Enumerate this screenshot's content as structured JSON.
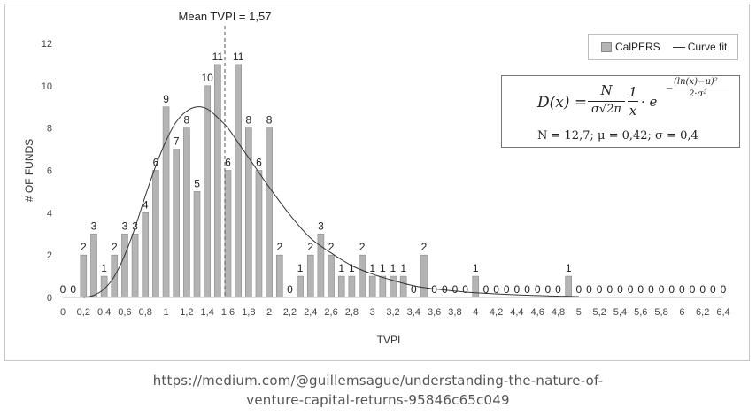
{
  "chart_data": {
    "type": "bar",
    "xlabel": "TVPI",
    "ylabel": "# OF FUNDS",
    "ylim": [
      0,
      12
    ],
    "xlim": [
      0,
      6.4
    ],
    "y_ticks": [
      "0",
      "2",
      "4",
      "6",
      "8",
      "10",
      "12"
    ],
    "x_tick_labels": [
      "0",
      "0,2",
      "0,4",
      "0,6",
      "0,8",
      "1",
      "1,2",
      "1,4",
      "1,6",
      "1,8",
      "2",
      "2,2",
      "2,4",
      "2,6",
      "2,8",
      "3",
      "3,2",
      "3,4",
      "3,6",
      "3,8",
      "4",
      "4,2",
      "4,4",
      "4,6",
      "4,8",
      "5",
      "5,2",
      "5,4",
      "5,6",
      "5,8",
      "6",
      "6,2",
      "6,4"
    ],
    "series": [
      {
        "name": "CalPERS",
        "type": "bar",
        "x": [
          0,
          0.1,
          0.2,
          0.3,
          0.4,
          0.5,
          0.6,
          0.7,
          0.8,
          0.9,
          1.0,
          1.1,
          1.2,
          1.3,
          1.4,
          1.5,
          1.6,
          1.7,
          1.8,
          1.9,
          2.0,
          2.1,
          2.2,
          2.3,
          2.4,
          2.5,
          2.6,
          2.7,
          2.8,
          2.9,
          3.0,
          3.1,
          3.2,
          3.3,
          3.4,
          3.5,
          3.6,
          3.7,
          3.8,
          3.9,
          4.0,
          4.1,
          4.2,
          4.3,
          4.4,
          4.5,
          4.6,
          4.7,
          4.8,
          4.9,
          5.0,
          5.1,
          5.2,
          5.3,
          5.4,
          5.5,
          5.6,
          5.7,
          5.8,
          5.9,
          6.0,
          6.1,
          6.2,
          6.3,
          6.4
        ],
        "values": [
          0,
          0,
          2,
          3,
          1,
          2,
          3,
          3,
          4,
          6,
          9,
          7,
          8,
          5,
          10,
          11,
          6,
          11,
          8,
          6,
          8,
          2,
          0,
          1,
          2,
          3,
          2,
          1,
          1,
          2,
          1,
          1,
          1,
          1,
          0,
          2,
          0,
          0,
          0,
          0,
          1,
          0,
          0,
          0,
          0,
          0,
          0,
          0,
          0,
          1,
          0,
          0,
          0,
          0,
          0,
          0,
          0,
          0,
          0,
          0,
          0,
          0,
          0,
          0,
          0
        ]
      },
      {
        "name": "Curve fit",
        "type": "line",
        "x": [
          0.2,
          0.3,
          0.4,
          0.5,
          0.6,
          0.7,
          0.8,
          0.9,
          1.0,
          1.1,
          1.2,
          1.3,
          1.4,
          1.5,
          1.6,
          1.7,
          1.8,
          1.9,
          2.0,
          2.2,
          2.4,
          2.6,
          2.8,
          3.0,
          3.2,
          3.4,
          3.6,
          3.8,
          4.0,
          4.4,
          4.8,
          5.0
        ],
        "values": [
          0.0,
          0.1,
          0.4,
          1.0,
          2.0,
          3.3,
          4.8,
          6.2,
          7.4,
          8.3,
          8.8,
          9.0,
          8.9,
          8.5,
          8.0,
          7.3,
          6.6,
          5.9,
          5.2,
          3.9,
          2.8,
          2.1,
          1.5,
          1.1,
          0.8,
          0.55,
          0.4,
          0.3,
          0.22,
          0.12,
          0.06,
          0.04
        ]
      }
    ],
    "annotations": {
      "mean_label": "Mean TVPI = 1,57",
      "mean_x": 1.57
    },
    "legend": {
      "position": "top-right",
      "entries": [
        "CalPERS",
        "Curve fit"
      ]
    },
    "formula": {
      "lhs": "D(x) =",
      "numerator": "N",
      "denominator": "σ√2π",
      "frac2_num": "1",
      "frac2_den": "x",
      "dot_e": "· e",
      "exponent_num": "(ln(x)−μ)²",
      "exponent_den": "2·σ²",
      "exponent_sign": "−",
      "params": "N = 12,7; μ = 0,42; σ = 0,4"
    },
    "colors": {
      "bar_fill": "#b4b4b4",
      "bar_stroke": "#8a8a8a",
      "curve": "#333333",
      "mean_line": "#555555",
      "axis": "#bfbfbf"
    },
    "grid": false
  },
  "footer": {
    "line1": "https://medium.com/@guillemsague/understanding-the-nature-of-",
    "line2": "venture-capital-returns-95846c65c049"
  }
}
